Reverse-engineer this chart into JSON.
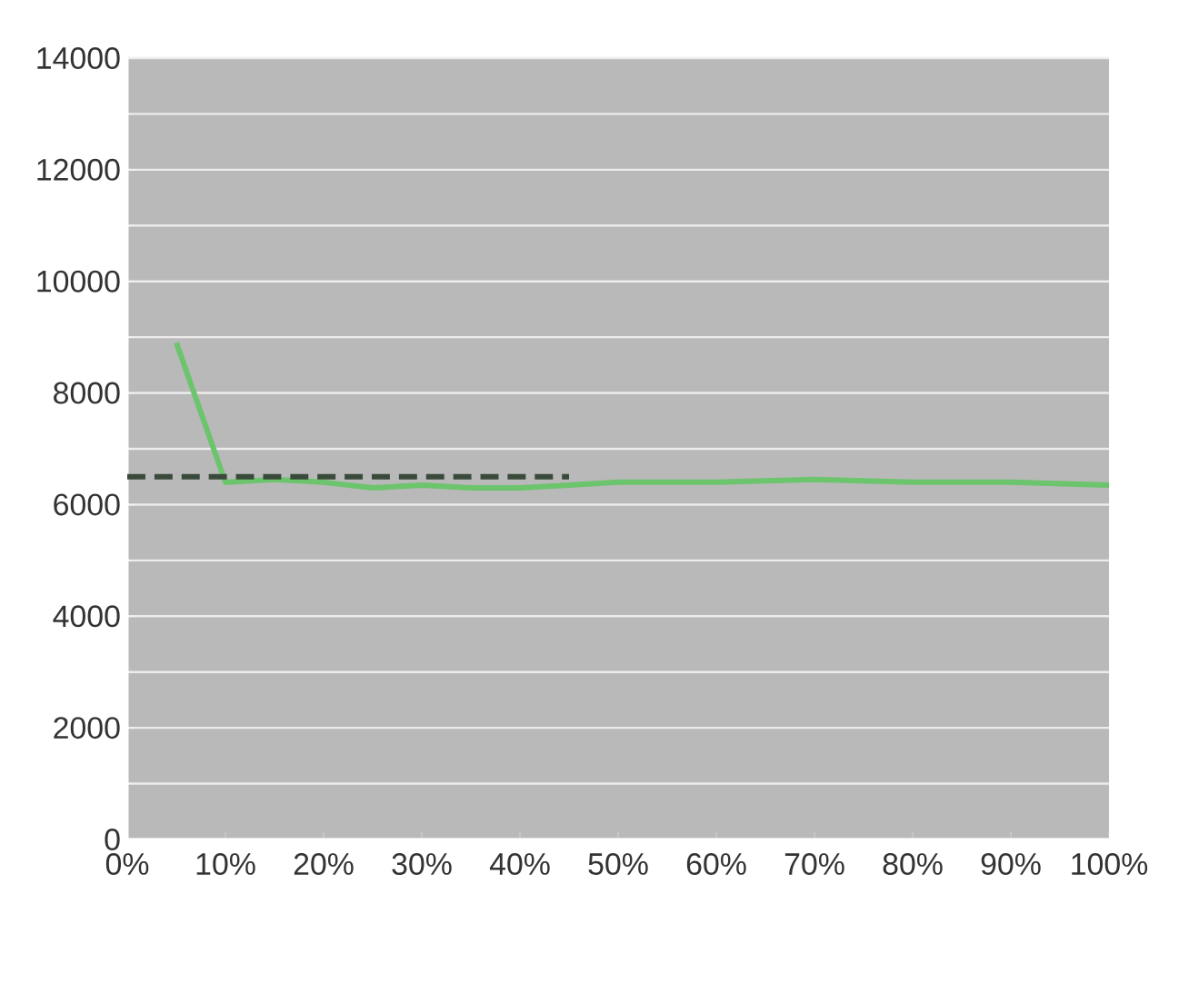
{
  "chart_data": {
    "type": "line",
    "series": [
      {
        "color": "#6cc46c",
        "line_style": "solid",
        "x": [
          5,
          10,
          15,
          20,
          25,
          30,
          35,
          40,
          45,
          50,
          60,
          70,
          80,
          90,
          100
        ],
        "values": [
          8900,
          6400,
          6450,
          6400,
          6300,
          6350,
          6300,
          6300,
          6350,
          6400,
          6400,
          6450,
          6400,
          6400,
          6350
        ]
      },
      {
        "color": "#3a4a3a",
        "line_style": "dashed",
        "x": [
          0,
          10,
          20,
          30,
          40,
          45
        ],
        "values": [
          6500,
          6500,
          6500,
          6500,
          6500,
          6500
        ]
      }
    ],
    "xlim": [
      0,
      100
    ],
    "xticks": [
      {
        "value": 0,
        "label": "0%"
      },
      {
        "value": 10,
        "label": "10%"
      },
      {
        "value": 20,
        "label": "20%"
      },
      {
        "value": 30,
        "label": "30%"
      },
      {
        "value": 40,
        "label": "40%"
      },
      {
        "value": 50,
        "label": "50%"
      },
      {
        "value": 60,
        "label": "60%"
      },
      {
        "value": 70,
        "label": "70%"
      },
      {
        "value": 80,
        "label": "80%"
      },
      {
        "value": 90,
        "label": "90%"
      },
      {
        "value": 100,
        "label": "100%"
      }
    ],
    "ylim": [
      0,
      14000
    ],
    "yticks": [
      0,
      2000,
      4000,
      6000,
      8000,
      10000,
      12000,
      14000
    ],
    "grid": "y",
    "legend": false,
    "marker": "none"
  }
}
